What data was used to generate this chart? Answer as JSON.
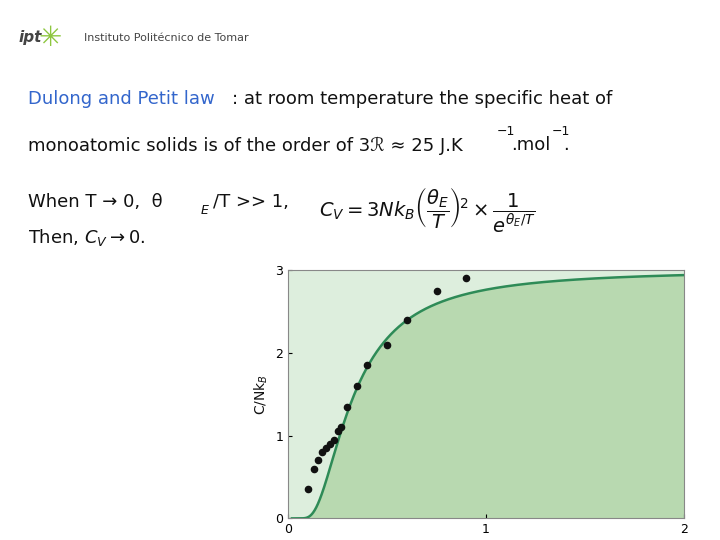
{
  "background_color": "#ffffff",
  "plot_xlim": [
    0,
    2
  ],
  "plot_ylim": [
    0,
    3
  ],
  "plot_xticks": [
    0,
    1,
    2
  ],
  "plot_yticks": [
    0,
    1,
    2,
    3
  ],
  "curve_color": "#2e8b57",
  "fill_color": "#b8d9b0",
  "data_points_x": [
    0.1,
    0.13,
    0.15,
    0.17,
    0.19,
    0.21,
    0.23,
    0.25,
    0.27,
    0.3,
    0.35,
    0.4,
    0.5,
    0.6,
    0.75,
    0.9
  ],
  "data_points_y": [
    0.35,
    0.6,
    0.7,
    0.8,
    0.85,
    0.9,
    0.95,
    1.05,
    1.1,
    1.35,
    1.6,
    1.85,
    2.1,
    2.4,
    2.75,
    2.9
  ],
  "data_color": "#111111",
  "logo_text": "ipt",
  "institute_text": "Instituto Politécnico de Tomar",
  "text_fontsize": 13,
  "formula_fontsize": 13,
  "blue_color": "#3366cc",
  "black_color": "#111111",
  "plot_bg_color": "#ddeedd"
}
